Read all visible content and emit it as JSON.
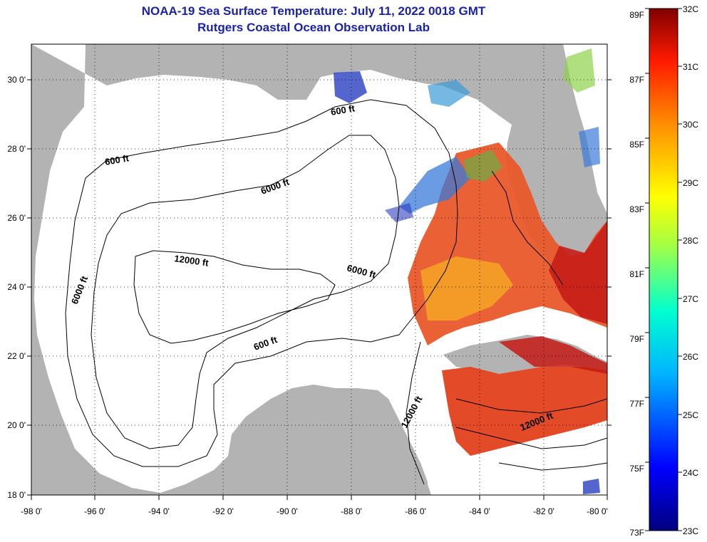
{
  "title": "NOAA-19 Sea Surface Temperature:  July 11, 2022 0018 GMT",
  "subtitle": "Rutgers Coastal Ocean Observation Lab",
  "map": {
    "lon_ticks": [
      "-98 0'",
      "-96 0'",
      "-94 0'",
      "-92 0'",
      "-90 0'",
      "-88 0'",
      "-86 0'",
      "-84 0'",
      "-82 0'",
      "-80 0'"
    ],
    "lat_ticks": [
      "18 0'",
      "20 0'",
      "22 0'",
      "24 0'",
      "26 0'",
      "28 0'",
      "30 0'"
    ],
    "lon_range": [
      -98,
      -80
    ],
    "lat_range": [
      18,
      31
    ],
    "contour_labels": [
      {
        "text": "600 ft",
        "id": "c600a"
      },
      {
        "text": "600 ft",
        "id": "c600b"
      },
      {
        "text": "600 ft",
        "id": "c600c"
      },
      {
        "text": "6000 ft",
        "id": "c6000a"
      },
      {
        "text": "6000 ft",
        "id": "c6000b"
      },
      {
        "text": "6000 ft",
        "id": "c6000c"
      },
      {
        "text": "12000 ft",
        "id": "c12000a"
      },
      {
        "text": "12000 ft",
        "id": "c12000b"
      },
      {
        "text": "12000 ft",
        "id": "c12000c"
      }
    ],
    "colors": {
      "land": "#b3b3b3",
      "ocean": "#ffffff",
      "data_warm": "#e8421a",
      "data_hot": "#c01818"
    }
  },
  "colorbar": {
    "fahrenheit": [
      "89F",
      "87F",
      "85F",
      "83F",
      "81F",
      "79F",
      "77F",
      "75F",
      "73F"
    ],
    "celsius": [
      "32C",
      "31C",
      "30C",
      "29C",
      "28C",
      "27C",
      "26C",
      "25C",
      "24C",
      "23C"
    ],
    "range_c": [
      23,
      32
    ]
  }
}
